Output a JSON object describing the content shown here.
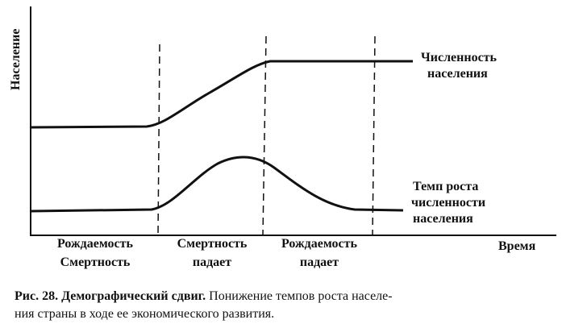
{
  "axes": {
    "y_label": "Население",
    "x_label": "Время"
  },
  "curves": [
    {
      "label": [
        "Численность",
        "населения"
      ]
    },
    {
      "label": [
        "Темп роста",
        "численности",
        "населения"
      ]
    }
  ],
  "phases": [
    {
      "lines": [
        "Рождаемость",
        "Смертность"
      ]
    },
    {
      "lines": [
        "Смертность",
        "падает"
      ]
    },
    {
      "lines": [
        "Рождаемость",
        "падает"
      ]
    }
  ],
  "caption": {
    "title": "Рис. 28. Демографический сдвиг.",
    "text_lines": [
      "Понижение темпов роста населе-",
      "ния страны в ходе ее экономического развития."
    ]
  }
}
